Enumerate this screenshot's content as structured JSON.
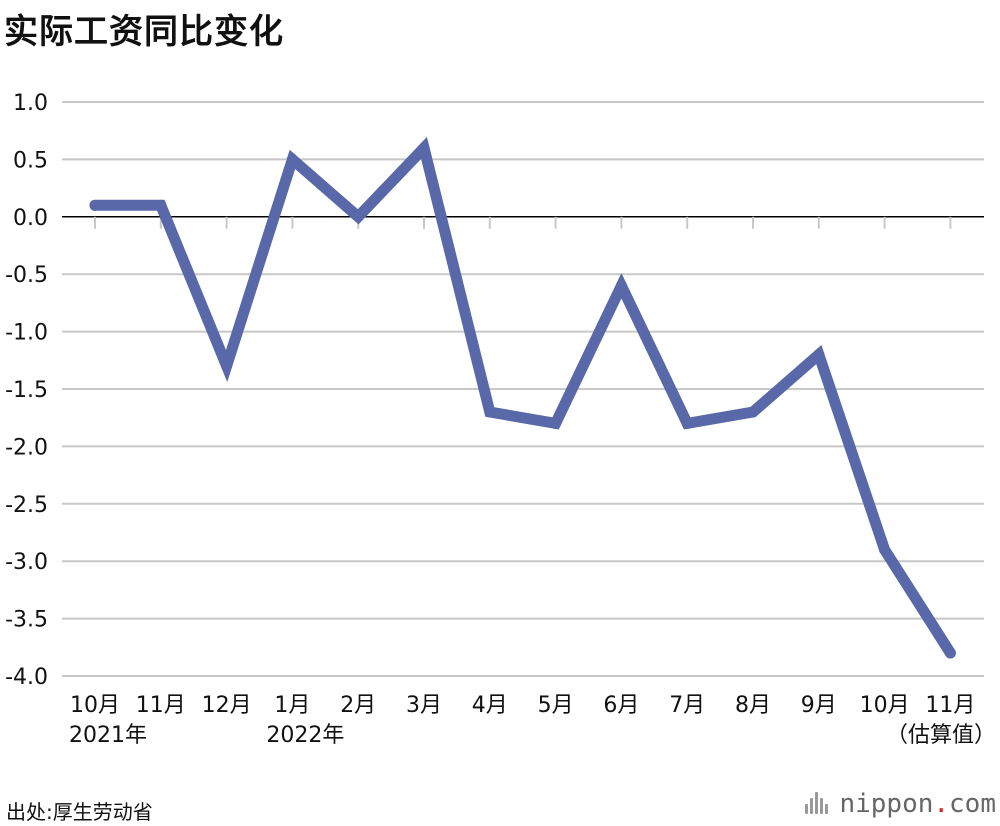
{
  "title": "实际工资同比变化",
  "source": "出处:厚生劳动省",
  "brand": {
    "name": "nippon",
    "dot": ".",
    "suffix": "com",
    "dot_color": "#e0201f"
  },
  "colors": {
    "line": "#5868a8",
    "grid": "#c8c8c8",
    "zero_line": "#000000",
    "text": "#111111"
  },
  "chart_data": {
    "type": "line",
    "title": "实际工资同比变化",
    "xlabel": "",
    "ylabel": "",
    "ylim": [
      -4.0,
      1.0
    ],
    "yticks": [
      "1.0",
      "0.5",
      "0.0",
      "-0.5",
      "-1.0",
      "-1.5",
      "-2.0",
      "-2.5",
      "-3.0",
      "-3.5",
      "-4.0"
    ],
    "categories": [
      "10月",
      "11月",
      "12月",
      "1月",
      "2月",
      "3月",
      "4月",
      "5月",
      "6月",
      "7月",
      "8月",
      "9月",
      "10月",
      "11月"
    ],
    "sublabels": [
      "2021年",
      "",
      "",
      "2022年",
      "",
      "",
      "",
      "",
      "",
      "",
      "",
      "",
      "",
      "（估算值）"
    ],
    "values": [
      0.1,
      0.1,
      -1.3,
      0.5,
      0.0,
      0.6,
      -1.7,
      -1.8,
      -0.6,
      -1.8,
      -1.7,
      -1.2,
      -2.9,
      -3.8
    ],
    "grid": true,
    "legend": "none"
  }
}
